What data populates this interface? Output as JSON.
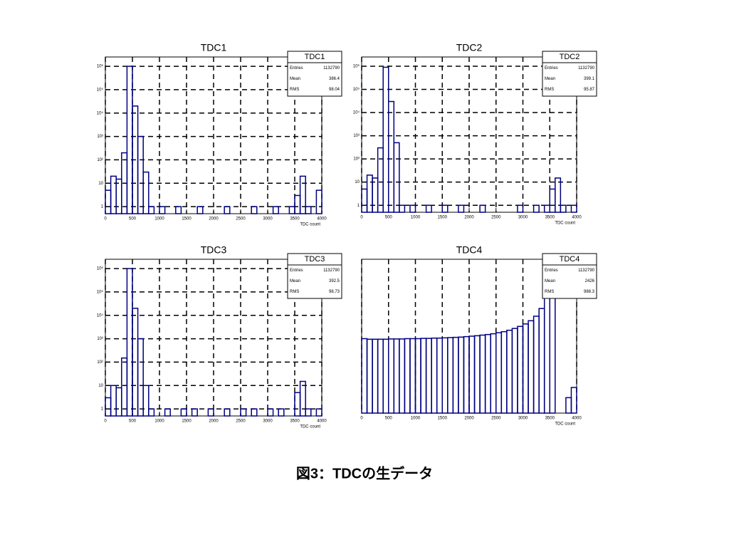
{
  "chart_data": [
    {
      "type": "histogram",
      "title": "TDC1",
      "xlabel": "TDC count",
      "color": "#000080",
      "log_y": true,
      "grid": true,
      "bins": [
        0,
        100,
        200,
        300,
        400,
        500,
        600,
        700,
        800,
        900,
        1000,
        1100,
        1200,
        1300,
        1400,
        1500,
        1600,
        1700,
        1800,
        1900,
        2000,
        2100,
        2200,
        2300,
        2400,
        2500,
        2600,
        2700,
        2800,
        2900,
        3000,
        3100,
        3200,
        3300,
        3400,
        3500,
        3600,
        3700,
        3800,
        3900,
        4000
      ],
      "values": [
        5,
        20,
        15,
        200,
        1000000,
        20000,
        1000,
        30,
        1,
        0,
        1,
        0,
        0,
        1,
        0,
        0,
        0,
        1,
        0,
        0,
        0,
        0,
        1,
        0,
        0,
        0,
        0,
        1,
        0,
        0,
        0,
        1,
        0,
        0,
        1,
        3,
        20,
        1,
        0,
        5
      ],
      "xlim": [
        0,
        4000
      ],
      "xticks": [
        0,
        500,
        1000,
        1500,
        2000,
        2500,
        3000,
        3500,
        4000
      ],
      "ylim": [
        0.5,
        2500000
      ],
      "yticks": [
        1,
        10,
        {
          "value": 100,
          "label": "10²"
        },
        {
          "value": 1000,
          "label": "10³"
        },
        {
          "value": 10000,
          "label": "10⁴"
        },
        {
          "value": 100000,
          "label": "10⁵"
        },
        {
          "value": 1000000,
          "label": "10⁶"
        }
      ],
      "stats": {
        "name": "TDC1",
        "rows": [
          {
            "label": "Entries",
            "value": 1132790
          },
          {
            "label": "Mean",
            "value": 386.4
          },
          {
            "label": "RMS",
            "value": 98.04
          }
        ]
      }
    },
    {
      "type": "histogram",
      "title": "TDC2",
      "xlabel": "TDC count",
      "color": "#000080",
      "log_y": true,
      "grid": true,
      "bins": [
        0,
        100,
        200,
        300,
        400,
        500,
        600,
        700,
        800,
        900,
        1000,
        1100,
        1200,
        1300,
        1400,
        1500,
        1600,
        1700,
        1800,
        1900,
        2000,
        2100,
        2200,
        2300,
        2400,
        2500,
        2600,
        2700,
        2800,
        2900,
        3000,
        3100,
        3200,
        3300,
        3400,
        3500,
        3600,
        3700,
        3800,
        3900,
        4000
      ],
      "values": [
        5,
        20,
        15,
        300,
        900000,
        30000,
        500,
        1,
        0,
        1,
        0,
        0,
        1,
        0,
        0,
        1,
        0,
        0,
        1,
        0,
        0,
        0,
        1,
        0,
        0,
        0,
        0,
        0,
        0,
        1,
        0,
        0,
        1,
        0,
        1,
        5,
        15,
        1,
        0,
        1
      ],
      "xlim": [
        0,
        4000
      ],
      "xticks": [
        0,
        500,
        1000,
        1500,
        2000,
        2500,
        3000,
        3500,
        4000
      ],
      "ylim": [
        0.5,
        2500000
      ],
      "yticks": [
        1,
        10,
        {
          "value": 100,
          "label": "10²"
        },
        {
          "value": 1000,
          "label": "10³"
        },
        {
          "value": 10000,
          "label": "10⁴"
        },
        {
          "value": 100000,
          "label": "10⁵"
        },
        {
          "value": 1000000,
          "label": "10⁶"
        }
      ],
      "stats": {
        "name": "TDC2",
        "rows": [
          {
            "label": "Entries",
            "value": 1132790
          },
          {
            "label": "Mean",
            "value": 399.1
          },
          {
            "label": "RMS",
            "value": 95.87
          }
        ]
      }
    },
    {
      "type": "histogram",
      "title": "TDC3",
      "xlabel": "TDC count",
      "color": "#000080",
      "log_y": true,
      "grid": true,
      "bins": [
        0,
        100,
        200,
        300,
        400,
        500,
        600,
        700,
        800,
        900,
        1000,
        1100,
        1200,
        1300,
        1400,
        1500,
        1600,
        1700,
        1800,
        1900,
        2000,
        2100,
        2200,
        2300,
        2400,
        2500,
        2600,
        2700,
        2800,
        2900,
        3000,
        3100,
        3200,
        3300,
        3400,
        3500,
        3600,
        3700,
        3800,
        3900,
        4000
      ],
      "values": [
        3,
        10,
        8,
        150,
        1000000,
        20000,
        1000,
        10,
        1,
        0,
        0,
        1,
        0,
        0,
        1,
        0,
        1,
        0,
        0,
        1,
        0,
        0,
        1,
        0,
        0,
        1,
        0,
        1,
        0,
        0,
        1,
        0,
        1,
        0,
        0,
        5,
        15,
        1,
        0,
        1
      ],
      "xlim": [
        0,
        4000
      ],
      "xticks": [
        0,
        500,
        1000,
        1500,
        2000,
        2500,
        3000,
        3500,
        4000
      ],
      "ylim": [
        0.5,
        2500000
      ],
      "yticks": [
        1,
        10,
        {
          "value": 100,
          "label": "10²"
        },
        {
          "value": 1000,
          "label": "10³"
        },
        {
          "value": 10000,
          "label": "10⁴"
        },
        {
          "value": 100000,
          "label": "10⁵"
        },
        {
          "value": 1000000,
          "label": "10⁶"
        }
      ],
      "stats": {
        "name": "TDC3",
        "rows": [
          {
            "label": "Entries",
            "value": 1132790
          },
          {
            "label": "Mean",
            "value": 392.5
          },
          {
            "label": "RMS",
            "value": 98.73
          }
        ]
      }
    },
    {
      "type": "histogram",
      "title": "TDC4",
      "xlabel": "TDC count",
      "color": "#000080",
      "log_y": true,
      "grid": true,
      "bins": [
        0,
        100,
        200,
        300,
        400,
        500,
        600,
        700,
        800,
        900,
        1000,
        1100,
        1200,
        1300,
        1400,
        1500,
        1600,
        1700,
        1800,
        1900,
        2000,
        2100,
        2200,
        2300,
        2400,
        2500,
        2600,
        2700,
        2800,
        2900,
        3000,
        3100,
        3200,
        3300,
        3400,
        3500,
        3600,
        3700,
        3800,
        3900,
        4000
      ],
      "values": [
        400,
        380,
        380,
        380,
        380,
        390,
        390,
        390,
        400,
        400,
        400,
        410,
        410,
        420,
        420,
        430,
        440,
        450,
        460,
        480,
        500,
        520,
        550,
        580,
        620,
        680,
        750,
        850,
        1000,
        1200,
        1500,
        2000,
        3000,
        6000,
        20000,
        300000,
        0,
        0,
        2,
        5
      ],
      "xlim": [
        0,
        4000
      ],
      "xticks": [
        0,
        500,
        1000,
        1500,
        2000,
        2500,
        3000,
        3500,
        4000
      ],
      "ylim": [
        0.5,
        500000
      ],
      "stats": {
        "name": "TDC4",
        "rows": [
          {
            "label": "Entries",
            "value": 1132790
          },
          {
            "label": "Mean",
            "value": 2426
          },
          {
            "label": "RMS",
            "value": 988.3
          }
        ]
      }
    }
  ],
  "caption": "図3：TDCの生データ"
}
